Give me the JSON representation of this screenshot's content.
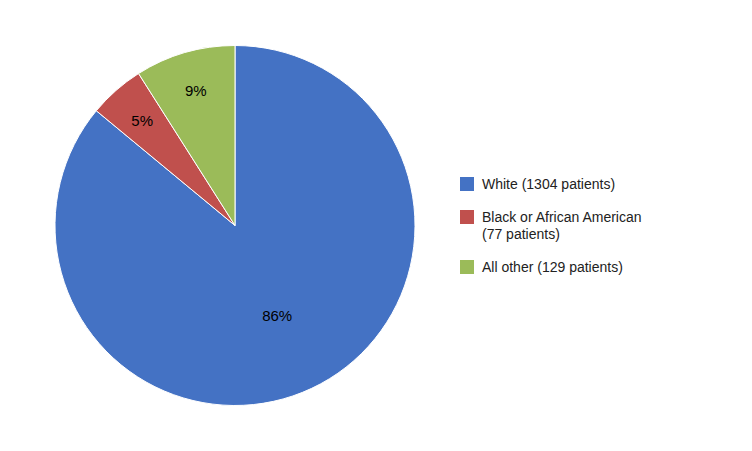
{
  "chart_data": {
    "type": "pie",
    "categories": [
      "White (1304 patients)",
      "Black or African American\n(77 patients)",
      "All other (129 patients)"
    ],
    "values": [
      86,
      5,
      9
    ],
    "value_labels": [
      "86%",
      "5%",
      "9%"
    ],
    "colors": [
      "#4472C4",
      "#C0504D",
      "#9BBB59"
    ],
    "data_labels": true,
    "legend": "right"
  }
}
